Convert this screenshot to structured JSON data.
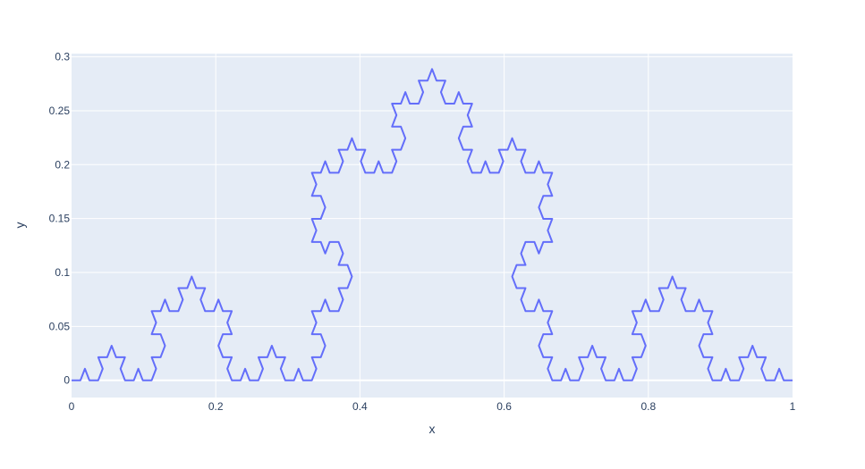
{
  "chart_data": {
    "type": "line",
    "title": "",
    "xlabel": "x",
    "ylabel": "y",
    "xlim": [
      0,
      1
    ],
    "ylim": [
      -0.016,
      0.303
    ],
    "xticks": [
      0,
      0.2,
      0.4,
      0.6,
      0.8,
      1
    ],
    "xtick_labels": [
      "0",
      "0.2",
      "0.4",
      "0.6",
      "0.8",
      "1"
    ],
    "yticks": [
      0,
      0.05,
      0.1,
      0.15,
      0.2,
      0.25,
      0.3
    ],
    "ytick_labels": [
      "0",
      "0.05",
      "0.1",
      "0.15",
      "0.2",
      "0.25",
      "0.3"
    ],
    "grid": true,
    "legend": "none",
    "series": [
      {
        "curve": "Koch curve, 4 iterations",
        "start": [
          0,
          0
        ],
        "end": [
          1,
          0
        ],
        "iterations": 4,
        "point_count": 257,
        "x_range": [
          0,
          1
        ],
        "y_range": [
          0,
          0.2887
        ]
      }
    ]
  },
  "colors": {
    "plot_background": "#e5ecf6",
    "grid": "#ffffff",
    "line": "#636efa",
    "text": "#2a3f5f"
  }
}
